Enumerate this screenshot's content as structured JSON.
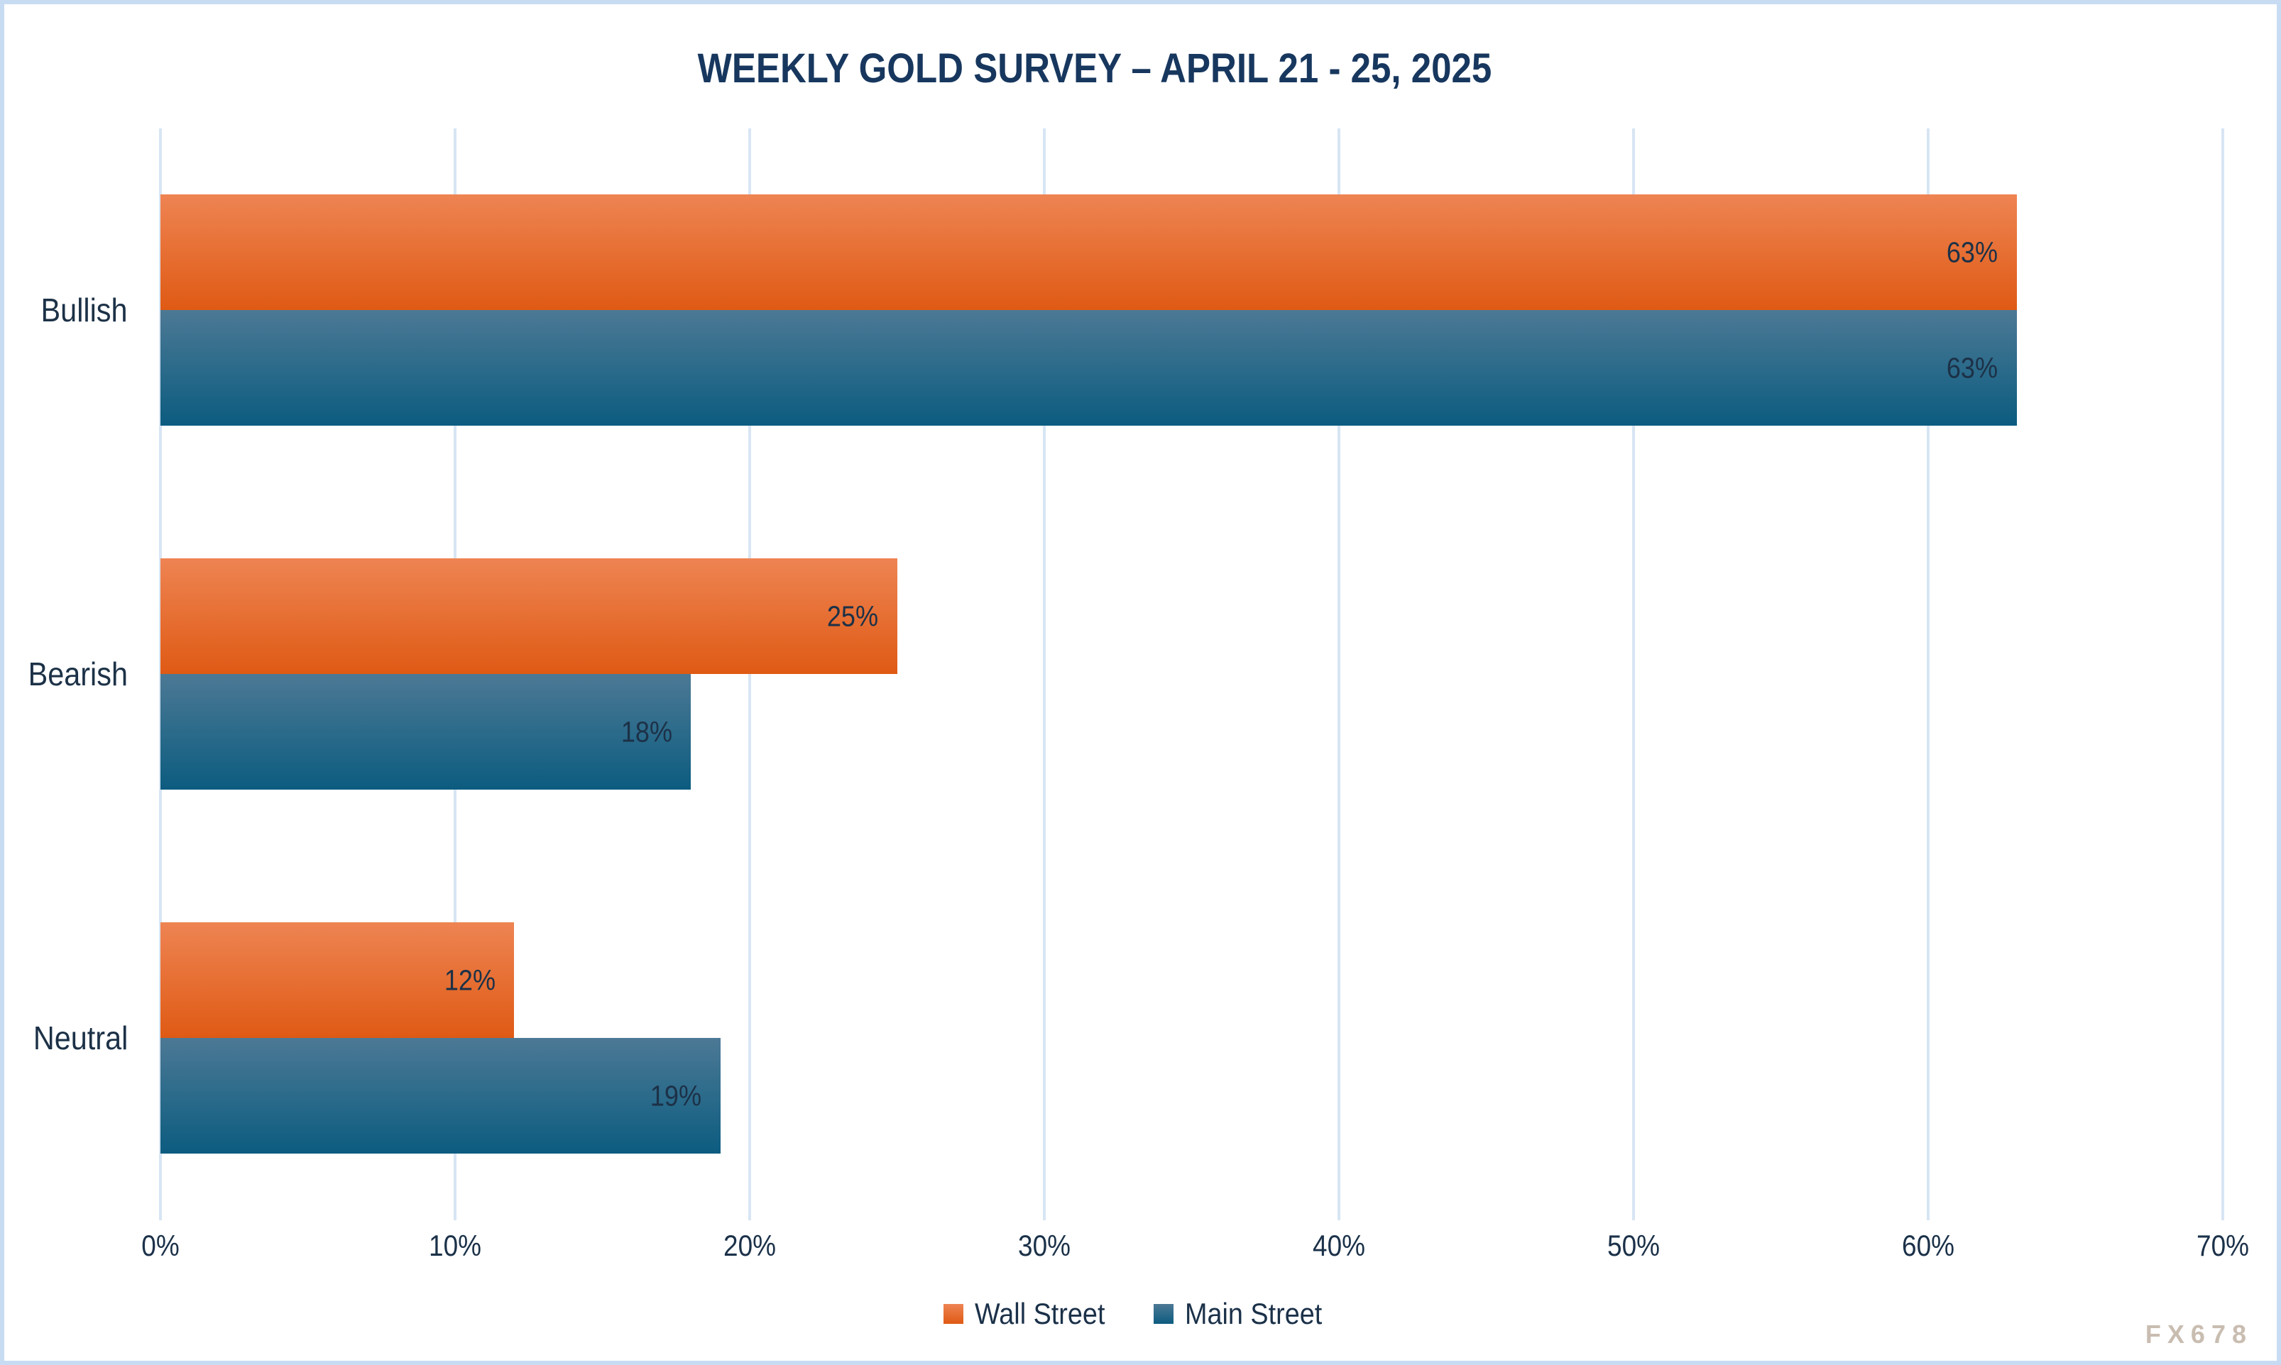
{
  "chart_data": {
    "type": "bar",
    "orientation": "horizontal",
    "title": "WEEKLY GOLD SURVEY – APRIL 21 - 25, 2025",
    "categories": [
      "Bullish",
      "Bearish",
      "Neutral"
    ],
    "series": [
      {
        "name": "Wall Street",
        "values": [
          63,
          25,
          12
        ],
        "color_top": "#ee8453",
        "color_bottom": "#df5a14",
        "legend_color": "#e2621c"
      },
      {
        "name": "Main Street",
        "values": [
          63,
          18,
          19
        ],
        "color_top": "#4c7995",
        "color_bottom": "#0c5c80",
        "legend_color": "#16597e"
      }
    ],
    "value_suffix": "%",
    "xlim": [
      0,
      70
    ],
    "x_tick_labels": [
      "0%",
      "10%",
      "20%",
      "30%",
      "40%",
      "50%",
      "60%",
      "70%"
    ],
    "grid": true,
    "legend_position": "bottom"
  },
  "colors": {
    "title_text": "#17375e",
    "axis_text": "#1b3149",
    "value_text": "#1c3147",
    "gridline": "#d7e5f4",
    "frame_border": "#c7dcf2",
    "background": "#ffffff",
    "watermark_text": "#c9bdb1"
  },
  "watermark": "FX678"
}
